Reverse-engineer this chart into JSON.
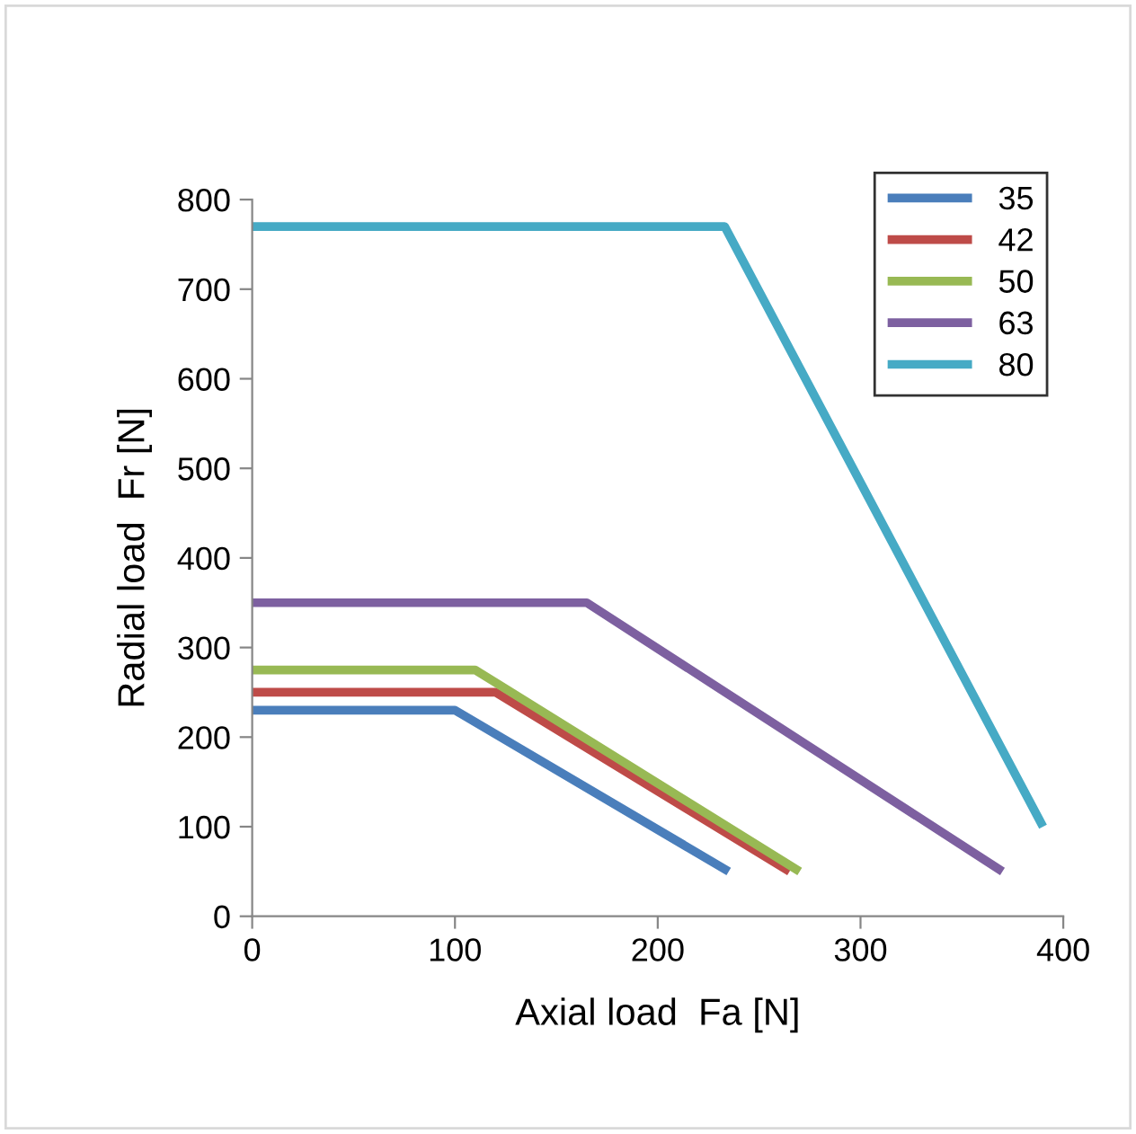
{
  "chart_data": {
    "type": "line",
    "xlabel": "Axial load  Fa [N]",
    "ylabel": "Radial load  Fr [N]",
    "series": [
      {
        "name": "35",
        "color": "#4a7ebb",
        "x": [
          0,
          100,
          235
        ],
        "values": [
          230,
          230,
          50
        ]
      },
      {
        "name": "42",
        "color": "#be4b48",
        "x": [
          0,
          120,
          265
        ],
        "values": [
          250,
          250,
          50
        ]
      },
      {
        "name": "50",
        "color": "#98b954",
        "x": [
          0,
          110,
          270
        ],
        "values": [
          275,
          275,
          50
        ]
      },
      {
        "name": "63",
        "color": "#7d60a0",
        "x": [
          0,
          165,
          370
        ],
        "values": [
          350,
          350,
          50
        ]
      },
      {
        "name": "80",
        "color": "#46aac5",
        "x": [
          0,
          233,
          390
        ],
        "values": [
          770,
          770,
          100
        ]
      }
    ],
    "xlim": [
      0,
      400
    ],
    "xticks": [
      0,
      100,
      200,
      300,
      400
    ],
    "ylim": [
      0,
      800
    ],
    "yticks": [
      0,
      100,
      200,
      300,
      400,
      500,
      600,
      700,
      800
    ],
    "grid": false,
    "legend": "top right",
    "marker": "none",
    "line_style": "solid"
  }
}
